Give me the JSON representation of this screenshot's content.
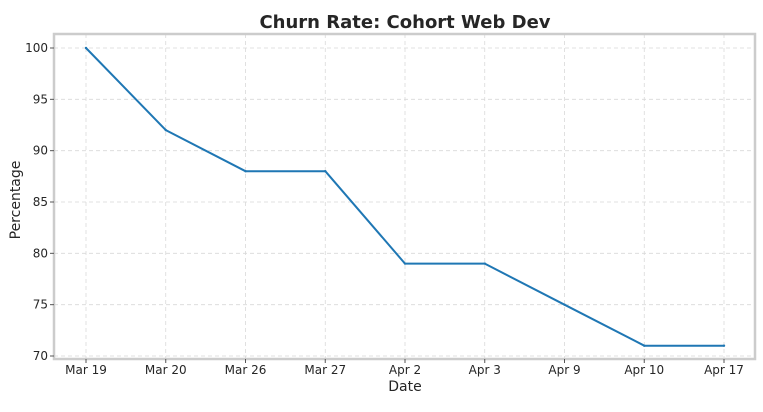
{
  "chart_data": {
    "type": "line",
    "title": "Churn Rate: Cohort Web Dev",
    "xlabel": "Date",
    "ylabel": "Percentage",
    "categories": [
      "Mar 19",
      "Mar 20",
      "Mar 26",
      "Mar 27",
      "Apr 2",
      "Apr 3",
      "Apr 9",
      "Apr 10",
      "Apr 17"
    ],
    "series": [
      {
        "values": [
          100,
          92,
          88,
          88,
          79,
          79,
          75,
          71,
          71
        ],
        "color": "#1f77b4"
      }
    ],
    "ylim": [
      70,
      100
    ],
    "yticks": [
      70,
      75,
      80,
      85,
      90,
      95,
      100
    ],
    "grid": true,
    "legend": "none"
  }
}
